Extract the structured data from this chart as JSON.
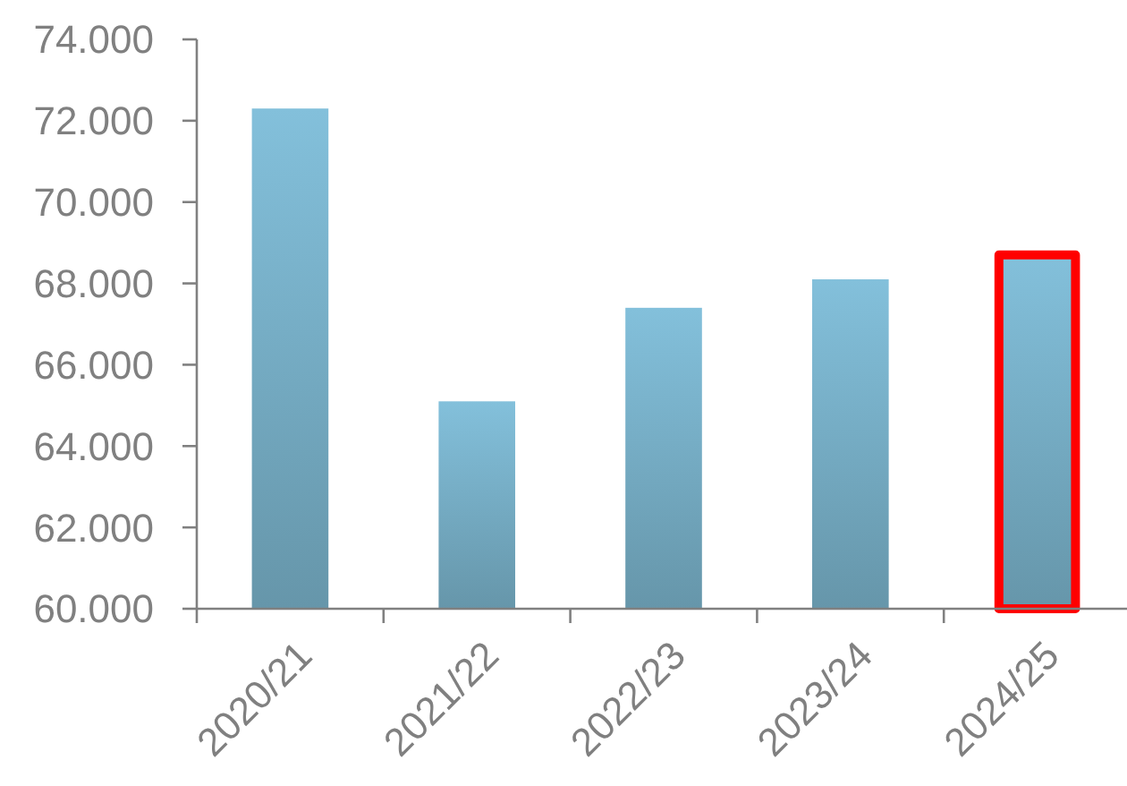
{
  "chart_data": {
    "type": "bar",
    "categories": [
      "2020/21",
      "2021/22",
      "2022/23",
      "2023/24",
      "2024/25"
    ],
    "values": [
      72300,
      65100,
      67400,
      68100,
      68700
    ],
    "colors": [
      "#78b0c8",
      "#78b0c8",
      "#78b0c8",
      "#78b0c8",
      "#ff0000"
    ],
    "ylim": [
      60000,
      74000
    ],
    "yticks": [
      {
        "value": 60000,
        "label": "60.000"
      },
      {
        "value": 62000,
        "label": "62.000"
      },
      {
        "value": 64000,
        "label": "64.000"
      },
      {
        "value": 66000,
        "label": "66.000"
      },
      {
        "value": 68000,
        "label": "68.000"
      },
      {
        "value": 70000,
        "label": "70.000"
      },
      {
        "value": 72000,
        "label": "72.000"
      },
      {
        "value": 74000,
        "label": "74.000"
      }
    ],
    "grid": false
  }
}
